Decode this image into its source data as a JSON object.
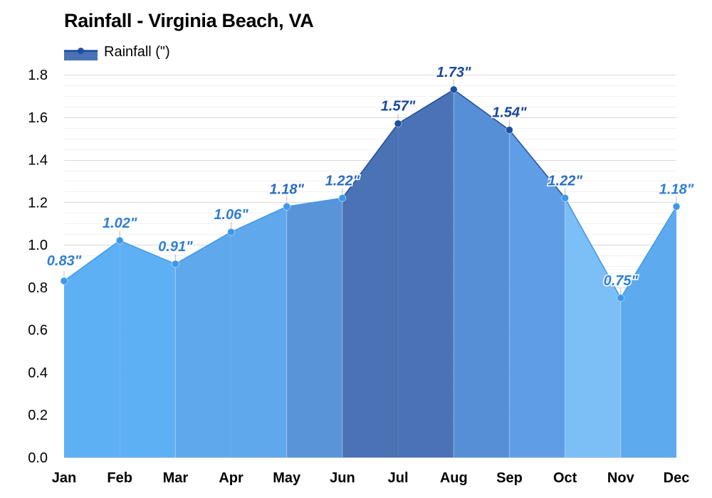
{
  "chart_data": {
    "type": "area",
    "title": "Rainfall - Virginia Beach, VA",
    "xlabel": "",
    "ylabel": "",
    "categories": [
      "Jan",
      "Feb",
      "Mar",
      "Apr",
      "May",
      "Jun",
      "Jul",
      "Aug",
      "Sep",
      "Oct",
      "Nov",
      "Dec"
    ],
    "series": [
      {
        "name": "Rainfall (\")",
        "values": [
          0.83,
          1.02,
          0.91,
          1.06,
          1.18,
          1.22,
          1.57,
          1.73,
          1.54,
          1.22,
          0.75,
          1.18
        ],
        "labels": [
          "0.83\"",
          "1.02\"",
          "0.91\"",
          "1.06\"",
          "1.18\"",
          "1.22\"",
          "1.57\"",
          "1.73\"",
          "1.54\"",
          "1.22\"",
          "0.75\"",
          "1.18\""
        ]
      }
    ],
    "ylim": [
      0,
      1.8
    ],
    "yticks": [
      "0.0",
      "0.2",
      "0.4",
      "0.6",
      "0.8",
      "1.0",
      "1.2",
      "1.4",
      "1.6",
      "1.8"
    ],
    "grid": true,
    "legend_position": "top-left",
    "colors": {
      "segment_fills": [
        "#5eb0f5",
        "#5eb0f5",
        "#60a8ec",
        "#60a8ec",
        "#5a94d8",
        "#4a72b4",
        "#4a72b4",
        "#578fd6",
        "#5f9ee6",
        "#7cbef6",
        "#5eaaef",
        "#5eaaef"
      ],
      "line_light": "#3d98ea",
      "line_dark": "#1f4fa0",
      "label_light": "#2f7fd2",
      "label_dark": "#19479a",
      "legend": "#4a72b4"
    }
  }
}
